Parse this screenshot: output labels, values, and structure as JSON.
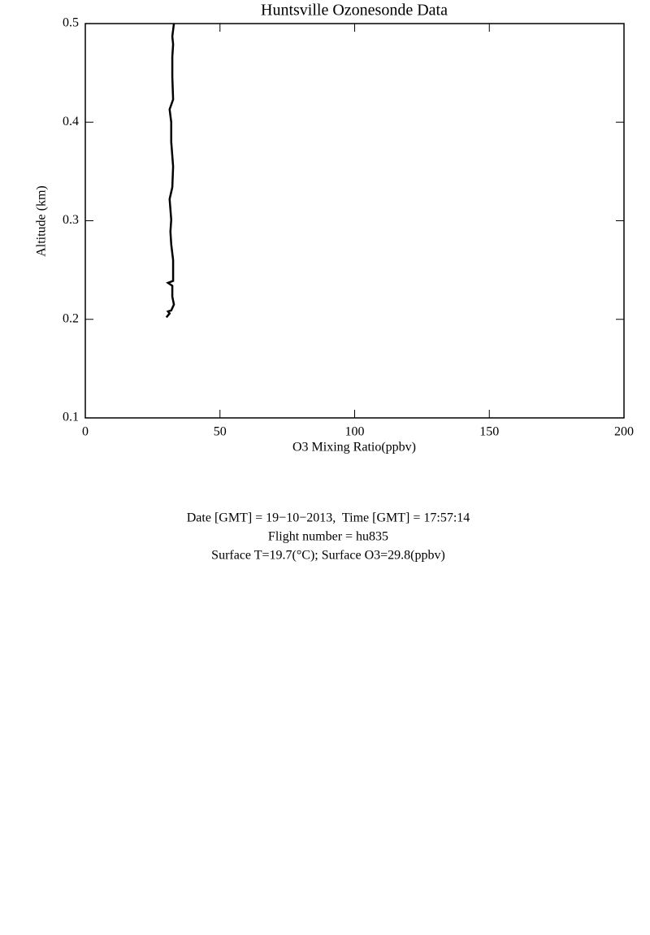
{
  "chart_data": {
    "type": "line",
    "title": "Huntsville Ozonesonde Data",
    "x_label": "O3 Mixing Ratio(ppbv)",
    "y_label": "Altitude (km)",
    "x": [
      30.1,
      31.3,
      30.7,
      31.9,
      32.9,
      32.3,
      32.3,
      30.7,
      32.6,
      32.6,
      31.9,
      31.6,
      31.9,
      31.3,
      32.3,
      32.6,
      31.9,
      31.9,
      31.3,
      32.6,
      32.3,
      32.3,
      32.6,
      32.3,
      32.9
    ],
    "values": [
      0.202,
      0.206,
      0.208,
      0.209,
      0.215,
      0.223,
      0.234,
      0.237,
      0.239,
      0.26,
      0.276,
      0.289,
      0.301,
      0.322,
      0.334,
      0.355,
      0.38,
      0.4,
      0.413,
      0.423,
      0.446,
      0.466,
      0.479,
      0.487,
      0.5
    ],
    "color": "#000000",
    "xlim": [
      0,
      200
    ],
    "xticks": [
      0,
      50,
      100,
      150,
      200
    ],
    "ylim": [
      0.1,
      0.5
    ],
    "yticks": [
      0.1,
      0.2,
      0.3,
      0.4,
      0.5
    ],
    "annotations": [
      "Date [GMT] = 19−10−2013,  Time [GMT] = 17:57:14",
      "Flight number = hu835",
      "Surface T=19.7(°C); Surface O3=29.8(ppbv)"
    ]
  }
}
